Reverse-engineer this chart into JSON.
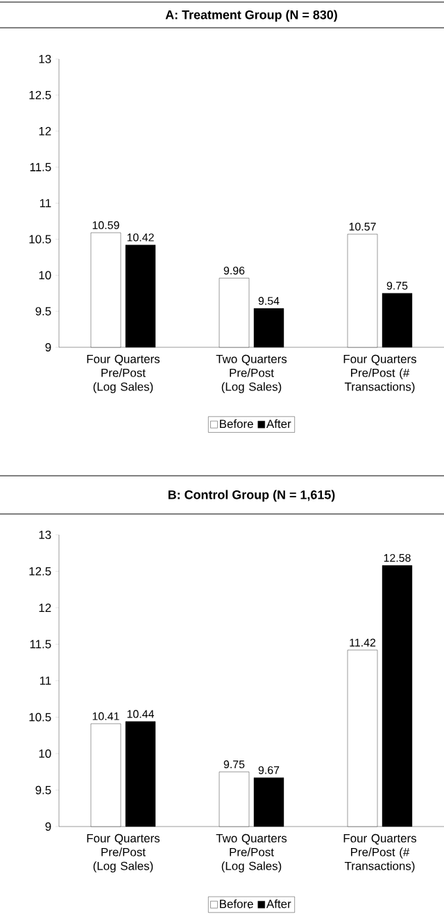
{
  "chart_data": [
    {
      "type": "bar",
      "title": "A: Treatment Group (N = 830)",
      "categories": [
        "Four Quarters Pre/Post (Log Sales)",
        "Two Quarters Pre/Post (Log Sales)",
        "Four Quarters Pre/Post (# Transactions)"
      ],
      "series": [
        {
          "name": "Before",
          "color": "#ffffff",
          "values": [
            10.59,
            9.96,
            10.57
          ]
        },
        {
          "name": "After",
          "color": "#000000",
          "values": [
            10.42,
            9.54,
            9.75
          ]
        }
      ],
      "ylim": [
        9,
        13
      ],
      "yticks": [
        9,
        9.5,
        10,
        10.5,
        11,
        11.5,
        12,
        12.5,
        13
      ],
      "data_labels": true,
      "legend": "bottom",
      "grid": false
    },
    {
      "type": "bar",
      "title": "B: Control Group (N = 1,615)",
      "categories": [
        "Four Quarters Pre/Post (Log Sales)",
        "Two Quarters Pre/Post (Log Sales)",
        "Four Quarters Pre/Post (# Transactions)"
      ],
      "series": [
        {
          "name": "Before",
          "color": "#ffffff",
          "values": [
            10.41,
            9.75,
            11.42
          ]
        },
        {
          "name": "After",
          "color": "#000000",
          "values": [
            10.44,
            9.67,
            12.58
          ]
        }
      ],
      "ylim": [
        9,
        13
      ],
      "yticks": [
        9,
        9.5,
        10,
        10.5,
        11,
        11.5,
        12,
        12.5,
        13
      ],
      "data_labels": true,
      "legend": "bottom",
      "grid": false
    }
  ]
}
